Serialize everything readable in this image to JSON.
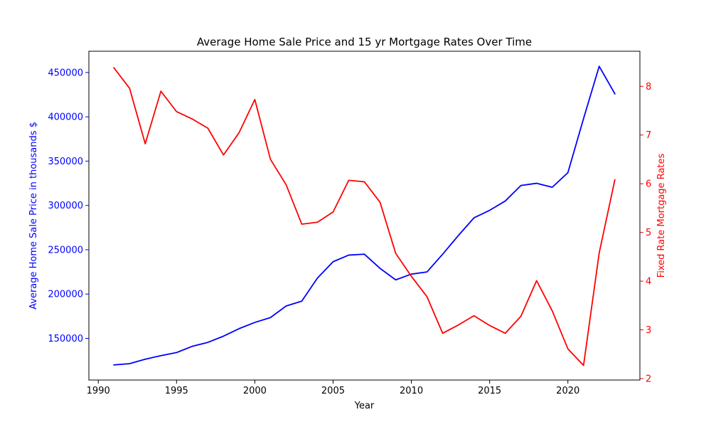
{
  "chart_data": {
    "type": "line",
    "title": "Average Home Sale Price and 15 yr Mortgage Rates Over Time",
    "xlabel": "Year",
    "ylabel_left": "Average Home Sale Price in thousands $",
    "ylabel_right": "Fixed Rate Mortgage Rates",
    "xlim": [
      1989.4,
      2024.6
    ],
    "ylim_left": [
      103000,
      474000
    ],
    "ylim_right": [
      1.97,
      8.72
    ],
    "x_ticks": [
      1990,
      1995,
      2000,
      2005,
      2010,
      2015,
      2020
    ],
    "y_left_ticks": [
      150000,
      200000,
      250000,
      300000,
      350000,
      400000,
      450000
    ],
    "y_right_ticks": [
      2,
      3,
      4,
      5,
      6,
      7,
      8
    ],
    "grid": false,
    "legend": "none",
    "colors": {
      "left_axis": "#0000ff",
      "right_axis": "#ff0000",
      "frame": "#000000"
    },
    "x": [
      1991,
      1992,
      1993,
      1994,
      1995,
      1996,
      1997,
      1998,
      1999,
      2000,
      2001,
      2002,
      2003,
      2004,
      2005,
      2006,
      2007,
      2008,
      2009,
      2010,
      2011,
      2012,
      2013,
      2014,
      2015,
      2016,
      2017,
      2018,
      2019,
      2020,
      2021,
      2022,
      2023
    ],
    "series": [
      {
        "axis": "left",
        "color": "#0000ff",
        "values": [
          120000,
          121500,
          126500,
          130500,
          134000,
          141000,
          145500,
          152500,
          161000,
          168000,
          173500,
          186500,
          192000,
          218000,
          236500,
          244000,
          245000,
          229000,
          216000,
          222500,
          225000,
          245000,
          266000,
          286000,
          294500,
          305000,
          322500,
          325000,
          320500,
          337000,
          398000,
          457000,
          426000
        ]
      },
      {
        "axis": "right",
        "color": "#ff0000",
        "values": [
          8.38,
          7.96,
          6.82,
          7.9,
          7.48,
          7.33,
          7.14,
          6.59,
          7.05,
          7.73,
          6.5,
          5.98,
          5.17,
          5.21,
          5.42,
          6.07,
          6.04,
          5.62,
          4.57,
          4.1,
          3.68,
          2.93,
          3.1,
          3.29,
          3.09,
          2.93,
          3.28,
          4.01,
          3.39,
          2.61,
          2.27,
          4.58,
          6.08
        ]
      }
    ]
  }
}
